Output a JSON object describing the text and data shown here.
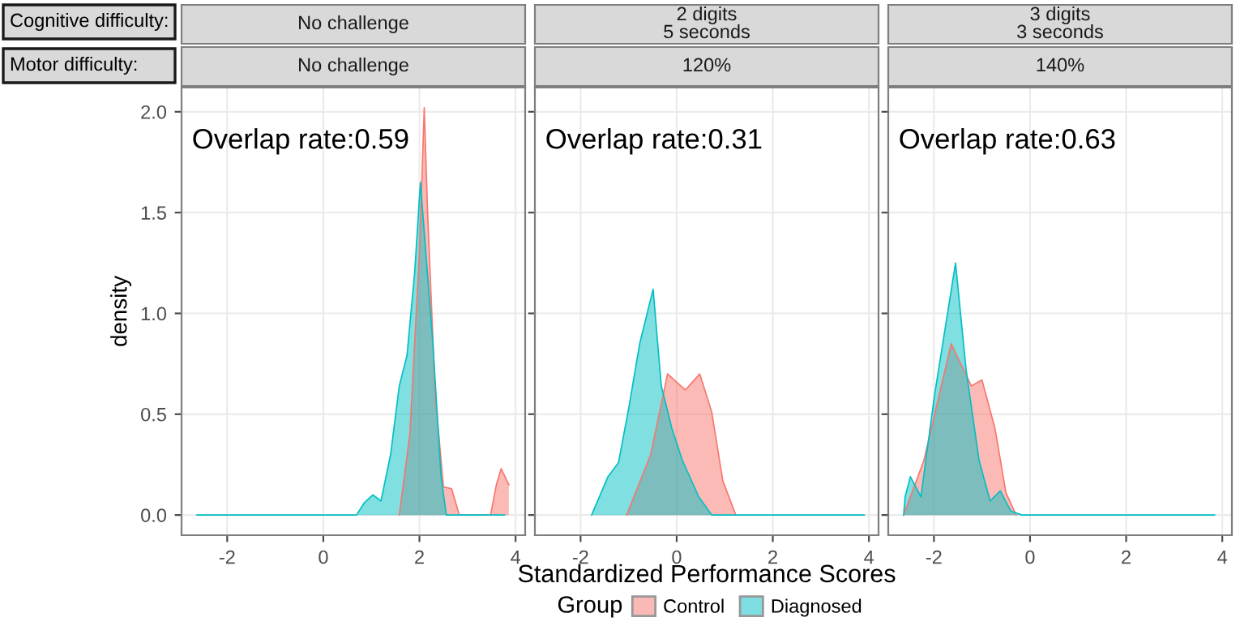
{
  "chart_data": [
    {
      "type": "area",
      "title": "No challenge",
      "subtitle": "No challenge",
      "ylabel": "density",
      "legend_title": "Group",
      "legend": "bottom",
      "annotations": [
        "Cognitive difficulty:",
        "Motor difficulty:",
        "Overlap rate:0.59"
      ],
      "xlim": [
        -2.95,
        4.2
      ],
      "ylim": [
        -0.1,
        2.12
      ],
      "xticks": [
        -2,
        0,
        2,
        4
      ],
      "yticks": [
        {
          "value": 0,
          "label": "0.0"
        },
        {
          "value": 0.5,
          "label": "0.5"
        },
        {
          "value": 1,
          "label": "1.0"
        },
        {
          "value": 1.5,
          "label": "1.5"
        },
        {
          "value": 2,
          "label": "2.0"
        }
      ],
      "grid": true,
      "series": [
        {
          "name": "Control",
          "color": "#F8766D",
          "x": [
            1.58,
            1.8,
            2.0,
            2.1,
            2.17,
            2.33,
            2.5,
            2.67,
            2.83,
            3.48,
            3.6,
            3.7,
            3.86
          ],
          "values": [
            0,
            0.4,
            1.3,
            2.02,
            1.5,
            0.59,
            0.14,
            0.13,
            0,
            0,
            0.15,
            0.23,
            0.15
          ]
        },
        {
          "name": "Diagnosed",
          "color": "#00BFC4",
          "x": [
            -2.63,
            0.69,
            0.85,
            1.03,
            1.2,
            1.4,
            1.58,
            1.74,
            1.9,
            2.02,
            2.28,
            2.45,
            2.56,
            3.77
          ],
          "values": [
            0,
            0,
            0.06,
            0.1,
            0.07,
            0.3,
            0.64,
            0.79,
            1.2,
            1.65,
            0.85,
            0.19,
            0,
            0
          ]
        }
      ]
    },
    {
      "type": "area",
      "title": "2 digits\n5 seconds",
      "subtitle": "120%",
      "xlabel": "Standardized Performance Scores",
      "annotations": [
        "Overlap rate:0.31"
      ],
      "xlim": [
        -2.95,
        4.2
      ],
      "ylim": [
        -0.1,
        2.12
      ],
      "xticks": [
        -2,
        0,
        2,
        4
      ],
      "yticks": [
        0,
        0.5,
        1,
        1.5,
        2
      ],
      "grid": true,
      "tick_labels": "x",
      "series": [
        {
          "color": "#F8766D",
          "x": [
            -1.04,
            -0.54,
            -0.19,
            0.18,
            0.48,
            0.73,
            0.96,
            1.23
          ],
          "values": [
            0,
            0.3,
            0.7,
            0.62,
            0.7,
            0.51,
            0.17,
            0
          ]
        },
        {
          "color": "#00BFC4",
          "x": [
            -1.77,
            -1.43,
            -1.21,
            -0.99,
            -0.77,
            -0.49,
            -0.32,
            -0.1,
            0.12,
            0.46,
            0.73,
            3.9
          ],
          "values": [
            0,
            0.19,
            0.26,
            0.54,
            0.85,
            1.12,
            0.64,
            0.43,
            0.27,
            0.09,
            0,
            0
          ]
        }
      ]
    },
    {
      "type": "area",
      "title": "3 digits\n3 seconds",
      "subtitle": "140%",
      "annotations": [
        "Overlap rate:0.63"
      ],
      "xlim": [
        -2.95,
        4.2
      ],
      "ylim": [
        -0.1,
        2.12
      ],
      "xticks": [
        -2,
        0,
        2,
        4
      ],
      "yticks": [
        0,
        0.5,
        1,
        1.5,
        2
      ],
      "grid": true,
      "tick_labels": "x",
      "series": [
        {
          "color": "#F8766D",
          "x": [
            -2.63,
            -2.21,
            -1.64,
            -1.22,
            -1.0,
            -0.73,
            -0.5,
            -0.29
          ],
          "values": [
            0,
            0.27,
            0.85,
            0.64,
            0.67,
            0.43,
            0.11,
            0
          ]
        },
        {
          "color": "#00BFC4",
          "x": [
            -2.63,
            -2.6,
            -2.49,
            -2.27,
            -1.99,
            -1.55,
            -1.33,
            -1.06,
            -0.83,
            -0.62,
            -0.4,
            -0.17,
            3.84
          ],
          "values": [
            0,
            0.09,
            0.19,
            0.09,
            0.59,
            1.25,
            0.72,
            0.27,
            0.07,
            0.12,
            0.02,
            0,
            0
          ]
        }
      ]
    }
  ]
}
